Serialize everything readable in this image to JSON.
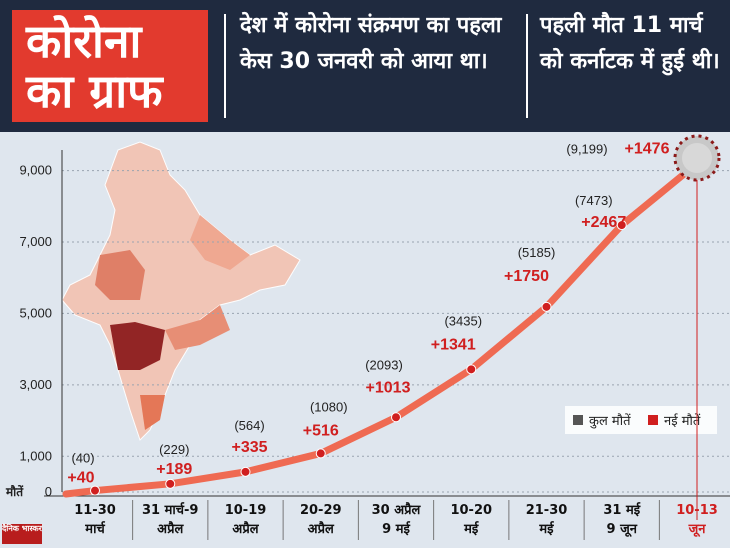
{
  "header": {
    "title_line1": "कोरोना",
    "title_line2": "का ग्राफ",
    "note1": "देश में कोरोना संक्रमण का पहला केस 30 जनवरी को आया था।",
    "note2": "पहली मौत 11 मार्च को कर्नाटक में हुई थी।"
  },
  "logo_text": "दैनिक भास्कर",
  "chart_data": {
    "type": "line",
    "y_axis_label": "मौतें",
    "yticks": [
      "0",
      "1,000",
      "3,000",
      "5,000",
      "7,000",
      "9,000"
    ],
    "ytick_values": [
      0,
      1000,
      3000,
      5000,
      7000,
      9000
    ],
    "ylim": [
      0,
      9800
    ],
    "categories": [
      {
        "line1": "11-30",
        "line2": "मार्च"
      },
      {
        "line1": "31 मार्च-9",
        "line2": "अप्रैल"
      },
      {
        "line1": "10-19",
        "line2": "अप्रैल"
      },
      {
        "line1": "20-29",
        "line2": "अप्रैल"
      },
      {
        "line1": "30 अप्रैल",
        "line2": "9 मई"
      },
      {
        "line1": "10-20",
        "line2": "मई"
      },
      {
        "line1": "21-30",
        "line2": "मई"
      },
      {
        "line1": "31 मई",
        "line2": "9 जून"
      },
      {
        "line1": "10-13",
        "line2": "जून"
      }
    ],
    "series": [
      {
        "name": "कुल मौतें",
        "values": [
          40,
          229,
          564,
          1080,
          2093,
          3435,
          5185,
          7473,
          9199
        ],
        "color": "#555555"
      },
      {
        "name": "नई मौतें",
        "values": [
          40,
          189,
          335,
          516,
          1013,
          1341,
          1750,
          2467,
          1476
        ],
        "color": "#d01f1f"
      }
    ],
    "total_labels": [
      "(40)",
      "(229)",
      "(564)",
      "(1080)",
      "(2093)",
      "(3435)",
      "(5185)",
      "(7473)",
      "(9,199)"
    ],
    "new_labels": [
      "+40",
      "+189",
      "+335",
      "+516",
      "+1013",
      "+1341",
      "+1750",
      "+2467",
      "+1476"
    ],
    "legend": [
      "कुल मौतें",
      "नई मौतें"
    ],
    "line_color": "#ef6a52",
    "grid": true
  }
}
